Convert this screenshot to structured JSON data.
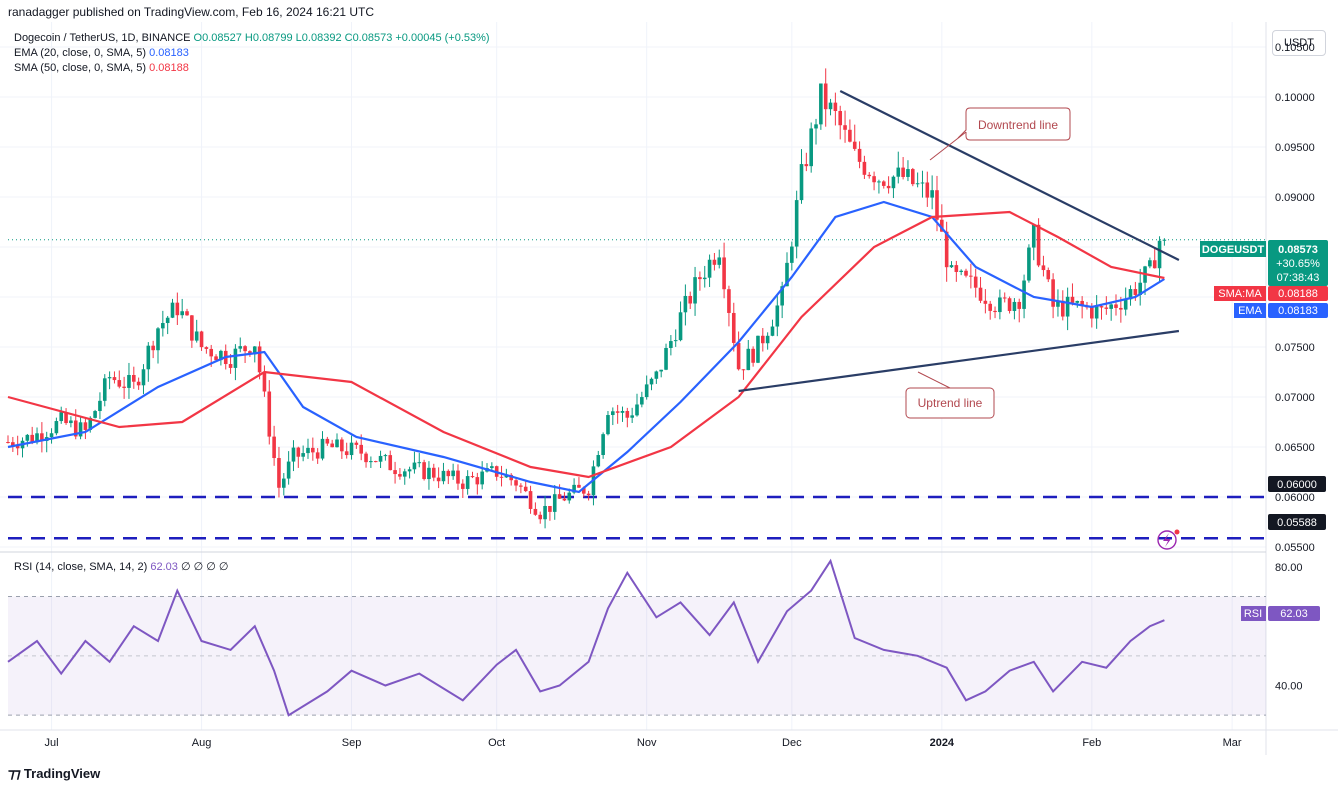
{
  "header": {
    "publisher": "ranadagger published on TradingView.com, Feb 16, 2024 16:21 UTC"
  },
  "legend": {
    "symbol": "Dogecoin / TetherUS, 1D, BINANCE",
    "ohlc": "O0.08527 H0.08799 L0.08392 C0.08573 +0.00045 (+0.53%)",
    "ema_label": "EMA (20, close, 0, SMA, 5)",
    "ema_value": "0.08183",
    "sma_label": "SMA (50, close, 0, SMA, 5)",
    "sma_value": "0.08188"
  },
  "rsi_legend": {
    "label": "RSI (14, close, SMA, 14, 2)",
    "value": "62.03",
    "extra": "∅ ∅ ∅ ∅"
  },
  "currency_button": "USDT",
  "badges": {
    "price": {
      "name": "DOGEUSDT",
      "value": "0.08573",
      "change": "+30.65%",
      "countdown": "07:38:43",
      "color": "#089981"
    },
    "sma": {
      "name": "SMA:MA",
      "value": "0.08188",
      "color": "#f23645"
    },
    "ema": {
      "name": "EMA",
      "value": "0.08183",
      "color": "#2962ff"
    },
    "level1": {
      "value": "0.06000"
    },
    "level2": {
      "value": "0.05588"
    },
    "rsi": {
      "name": "RSI",
      "value": "62.03",
      "color": "#7e57c2"
    }
  },
  "annotations": {
    "downtrend": "Downtrend line",
    "uptrend": "Uptrend line"
  },
  "brand": "TradingView",
  "colors": {
    "up": "#089981",
    "down": "#f23645",
    "ema": "#2962ff",
    "sma": "#f23645",
    "rsi": "#7e57c2",
    "level": "#1e1ebe",
    "trend": "#2a3d66"
  },
  "chart_data": [
    {
      "type": "candlestick",
      "symbol": "DOGEUSDT",
      "ylim": [
        0.0545,
        0.1075
      ],
      "y_ticks": [
        "0.10500",
        "0.10000",
        "0.09500",
        "0.09000",
        "0.08500",
        "0.08000",
        "0.07500",
        "0.07000",
        "0.06500",
        "0.06000",
        "0.05500"
      ],
      "x_ticks": [
        "Jul",
        "Aug",
        "Sep",
        "Oct",
        "Nov",
        "Dec",
        "2024",
        "Feb",
        "Mar"
      ],
      "x_tick_dates": [
        "2023-07-01",
        "2023-08-01",
        "2023-09-01",
        "2023-10-01",
        "2023-11-01",
        "2023-12-01",
        "2024-01-01",
        "2024-02-01",
        "2024-03-01"
      ],
      "xlim": [
        "2023-06-22",
        "2024-03-08"
      ],
      "horizontal_levels": [
        0.06,
        0.05588
      ],
      "downtrend_line": {
        "from": [
          "2023-12-11",
          0.1006
        ],
        "to": [
          "2024-02-19",
          0.0837
        ]
      },
      "uptrend_line": {
        "from": [
          "2023-11-20",
          0.0706
        ],
        "to": [
          "2024-02-19",
          0.0766
        ]
      },
      "last_close": 0.08573,
      "close_series": {
        "dates": [
          "2023-06-22",
          "2023-06-27",
          "2023-07-03",
          "2023-07-08",
          "2023-07-13",
          "2023-07-18",
          "2023-07-23",
          "2023-07-27",
          "2023-08-01",
          "2023-08-07",
          "2023-08-12",
          "2023-08-17",
          "2023-08-20",
          "2023-08-27",
          "2023-09-03",
          "2023-09-10",
          "2023-09-17",
          "2023-09-24",
          "2023-10-01",
          "2023-10-05",
          "2023-10-10",
          "2023-10-15",
          "2023-10-20",
          "2023-10-24",
          "2023-10-28",
          "2023-11-03",
          "2023-11-08",
          "2023-11-12",
          "2023-11-16",
          "2023-11-20",
          "2023-11-24",
          "2023-11-29",
          "2023-12-03",
          "2023-12-07",
          "2023-12-10",
          "2023-12-14",
          "2023-12-19",
          "2023-12-24",
          "2023-12-30",
          "2024-01-03",
          "2024-01-08",
          "2024-01-13",
          "2024-01-17",
          "2024-01-20",
          "2024-01-24",
          "2024-01-29",
          "2024-02-03",
          "2024-02-08",
          "2024-02-13",
          "2024-02-15",
          "2024-02-16"
        ],
        "values": [
          0.0655,
          0.066,
          0.0675,
          0.0665,
          0.072,
          0.071,
          0.077,
          0.079,
          0.075,
          0.074,
          0.0755,
          0.061,
          0.064,
          0.065,
          0.0645,
          0.063,
          0.0625,
          0.0615,
          0.0625,
          0.0615,
          0.0585,
          0.06,
          0.061,
          0.069,
          0.068,
          0.072,
          0.078,
          0.082,
          0.085,
          0.073,
          0.075,
          0.08,
          0.092,
          0.1,
          0.098,
          0.094,
          0.092,
          0.092,
          0.09,
          0.082,
          0.081,
          0.079,
          0.08,
          0.086,
          0.079,
          0.079,
          0.0785,
          0.08,
          0.0825,
          0.0857,
          0.0857
        ]
      },
      "ema20": {
        "dates": [
          "2023-06-22",
          "2023-07-08",
          "2023-07-23",
          "2023-08-06",
          "2023-08-14",
          "2023-08-22",
          "2023-09-02",
          "2023-09-20",
          "2023-10-08",
          "2023-10-18",
          "2023-10-28",
          "2023-11-08",
          "2023-11-20",
          "2023-12-01",
          "2023-12-10",
          "2023-12-20",
          "2023-12-30",
          "2024-01-08",
          "2024-01-20",
          "2024-02-01",
          "2024-02-10",
          "2024-02-16"
        ],
        "values": [
          0.065,
          0.0665,
          0.071,
          0.074,
          0.0745,
          0.069,
          0.066,
          0.064,
          0.0615,
          0.0605,
          0.0645,
          0.0695,
          0.0755,
          0.082,
          0.088,
          0.0895,
          0.088,
          0.083,
          0.08,
          0.079,
          0.08,
          0.0818
        ]
      },
      "sma50": {
        "dates": [
          "2023-06-22",
          "2023-07-15",
          "2023-07-28",
          "2023-08-14",
          "2023-09-01",
          "2023-09-20",
          "2023-10-08",
          "2023-10-20",
          "2023-11-06",
          "2023-11-20",
          "2023-12-03",
          "2023-12-18",
          "2023-12-30",
          "2024-01-15",
          "2024-01-25",
          "2024-02-05",
          "2024-02-16"
        ],
        "values": [
          0.07,
          0.067,
          0.0675,
          0.0725,
          0.0715,
          0.0665,
          0.063,
          0.062,
          0.065,
          0.07,
          0.078,
          0.085,
          0.088,
          0.0885,
          0.086,
          0.083,
          0.0819
        ]
      }
    },
    {
      "type": "line",
      "name": "RSI",
      "ylim": [
        25,
        85
      ],
      "y_ticks": [
        "80.00",
        "40.00"
      ],
      "band": [
        30,
        70
      ],
      "midline": 50,
      "series": [
        {
          "dates": [
            "2023-06-22",
            "2023-06-28",
            "2023-07-03",
            "2023-07-08",
            "2023-07-13",
            "2023-07-18",
            "2023-07-23",
            "2023-07-27",
            "2023-08-01",
            "2023-08-07",
            "2023-08-12",
            "2023-08-16",
            "2023-08-19",
            "2023-08-27",
            "2023-09-01",
            "2023-09-08",
            "2023-09-15",
            "2023-09-24",
            "2023-10-01",
            "2023-10-05",
            "2023-10-10",
            "2023-10-14",
            "2023-10-20",
            "2023-10-24",
            "2023-10-28",
            "2023-11-03",
            "2023-11-08",
            "2023-11-14",
            "2023-11-19",
            "2023-11-24",
            "2023-11-30",
            "2023-12-05",
            "2023-12-09",
            "2023-12-14",
            "2023-12-20",
            "2023-12-27",
            "2024-01-02",
            "2024-01-06",
            "2024-01-10",
            "2024-01-15",
            "2024-01-20",
            "2024-01-24",
            "2024-01-30",
            "2024-02-04",
            "2024-02-09",
            "2024-02-13",
            "2024-02-16"
          ],
          "values": [
            48,
            55,
            44,
            55,
            48,
            60,
            55,
            72,
            55,
            52,
            60,
            45,
            30,
            38,
            45,
            40,
            44,
            35,
            47,
            52,
            38,
            40,
            48,
            66,
            78,
            63,
            68,
            57,
            68,
            48,
            65,
            72,
            82,
            56,
            52,
            50,
            46,
            35,
            38,
            45,
            48,
            38,
            48,
            46,
            55,
            60,
            62
          ]
        }
      ],
      "last_value": 62.03
    }
  ]
}
